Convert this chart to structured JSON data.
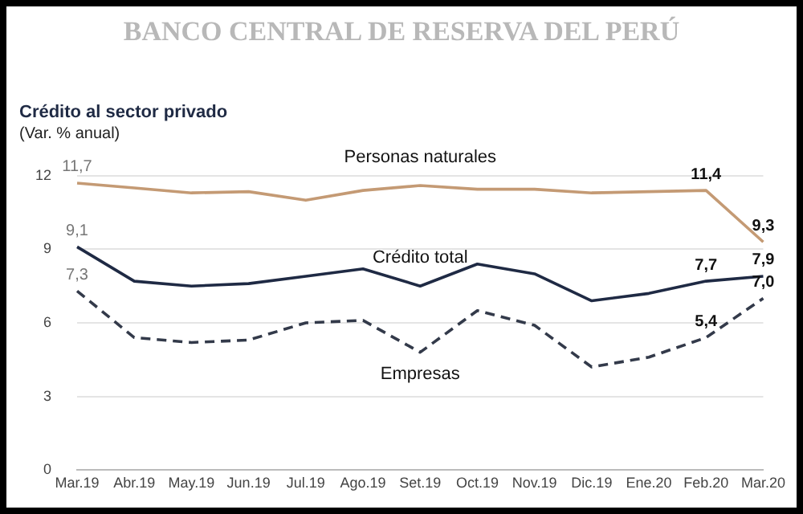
{
  "chart_data": {
    "type": "line",
    "title": "BANCO CENTRAL DE RESERVA DEL PERÚ",
    "subtitle": "Crédito al sector privado",
    "ylabel": "(Var. % anual)",
    "categories": [
      "Mar.19",
      "Abr.19",
      "May.19",
      "Jun.19",
      "Jul.19",
      "Ago.19",
      "Set.19",
      "Oct.19",
      "Nov.19",
      "Dic.19",
      "Ene.20",
      "Feb.20",
      "Mar.20"
    ],
    "series": [
      {
        "name": "Personas naturales",
        "color": "#c49a74",
        "line_style": "solid",
        "values": [
          11.7,
          11.5,
          11.3,
          11.35,
          11.0,
          11.4,
          11.6,
          11.45,
          11.45,
          11.3,
          11.35,
          11.4,
          9.3
        ],
        "value_labels": [
          "11,7",
          null,
          null,
          null,
          null,
          null,
          null,
          null,
          null,
          null,
          null,
          "11,4",
          "9,3"
        ]
      },
      {
        "name": "Crédito total",
        "color": "#1f2a44",
        "line_style": "solid",
        "values": [
          9.1,
          7.7,
          7.5,
          7.6,
          7.9,
          8.2,
          7.5,
          8.4,
          8.0,
          6.9,
          7.2,
          7.7,
          7.9
        ],
        "value_labels": [
          "9,1",
          null,
          null,
          null,
          null,
          null,
          null,
          null,
          null,
          null,
          null,
          "7,7",
          "7,9"
        ]
      },
      {
        "name": "Empresas",
        "color": "#333a4a",
        "line_style": "dashed",
        "values": [
          7.3,
          5.4,
          5.2,
          5.3,
          6.0,
          6.1,
          4.8,
          6.5,
          5.9,
          4.2,
          4.6,
          5.4,
          7.0
        ],
        "value_labels": [
          "7,3",
          null,
          null,
          null,
          null,
          null,
          null,
          null,
          null,
          null,
          null,
          "5,4",
          "7,0"
        ]
      }
    ],
    "ylim": [
      0,
      12
    ],
    "yticks": [
      0,
      3,
      6,
      9,
      12
    ],
    "grid": "y",
    "legend": false,
    "marker": "none"
  }
}
